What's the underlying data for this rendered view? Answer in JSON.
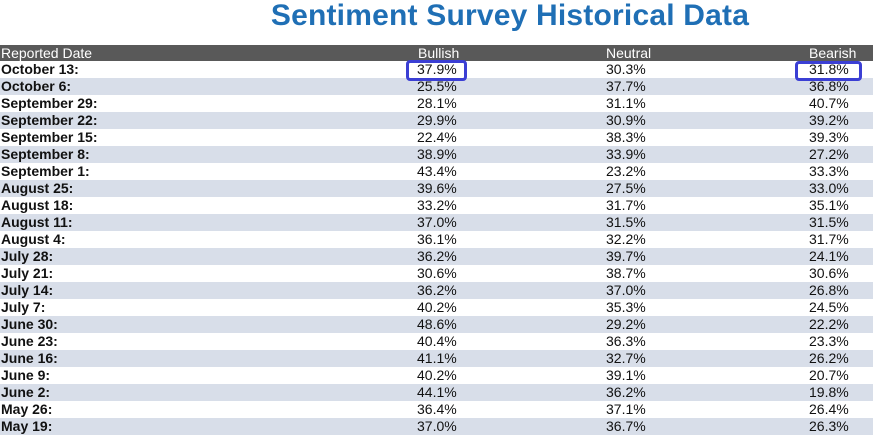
{
  "title": "Sentiment Survey Historical Data",
  "headers": {
    "date": "Reported Date",
    "bullish": "Bullish",
    "neutral": "Neutral",
    "bearish": "Bearish"
  },
  "rows": [
    {
      "date": "October 13:",
      "bullish": "37.9%",
      "neutral": "30.3%",
      "bearish": "31.8%"
    },
    {
      "date": "October 6:",
      "bullish": "25.5%",
      "neutral": "37.7%",
      "bearish": "36.8%"
    },
    {
      "date": "September 29:",
      "bullish": "28.1%",
      "neutral": "31.1%",
      "bearish": "40.7%"
    },
    {
      "date": "September 22:",
      "bullish": "29.9%",
      "neutral": "30.9%",
      "bearish": "39.2%"
    },
    {
      "date": "September 15:",
      "bullish": "22.4%",
      "neutral": "38.3%",
      "bearish": "39.3%"
    },
    {
      "date": "September 8:",
      "bullish": "38.9%",
      "neutral": "33.9%",
      "bearish": "27.2%"
    },
    {
      "date": "September 1:",
      "bullish": "43.4%",
      "neutral": "23.2%",
      "bearish": "33.3%"
    },
    {
      "date": "August 25:",
      "bullish": "39.6%",
      "neutral": "27.5%",
      "bearish": "33.0%"
    },
    {
      "date": "August 18:",
      "bullish": "33.2%",
      "neutral": "31.7%",
      "bearish": "35.1%"
    },
    {
      "date": "August 11:",
      "bullish": "37.0%",
      "neutral": "31.5%",
      "bearish": "31.5%"
    },
    {
      "date": "August 4:",
      "bullish": "36.1%",
      "neutral": "32.2%",
      "bearish": "31.7%"
    },
    {
      "date": "July 28:",
      "bullish": "36.2%",
      "neutral": "39.7%",
      "bearish": "24.1%"
    },
    {
      "date": "July 21:",
      "bullish": "30.6%",
      "neutral": "38.7%",
      "bearish": "30.6%"
    },
    {
      "date": "July 14:",
      "bullish": "36.2%",
      "neutral": "37.0%",
      "bearish": "26.8%"
    },
    {
      "date": "July 7:",
      "bullish": "40.2%",
      "neutral": "35.3%",
      "bearish": "24.5%"
    },
    {
      "date": "June 30:",
      "bullish": "48.6%",
      "neutral": "29.2%",
      "bearish": "22.2%"
    },
    {
      "date": "June 23:",
      "bullish": "40.4%",
      "neutral": "36.3%",
      "bearish": "23.3%"
    },
    {
      "date": "June 16:",
      "bullish": "41.1%",
      "neutral": "32.7%",
      "bearish": "26.2%"
    },
    {
      "date": "June 9:",
      "bullish": "40.2%",
      "neutral": "39.1%",
      "bearish": "20.7%"
    },
    {
      "date": "June 2:",
      "bullish": "44.1%",
      "neutral": "36.2%",
      "bearish": "19.8%"
    },
    {
      "date": "May 26:",
      "bullish": "36.4%",
      "neutral": "37.1%",
      "bearish": "26.4%"
    },
    {
      "date": "May 19:",
      "bullish": "37.0%",
      "neutral": "36.7%",
      "bearish": "26.3%"
    }
  ],
  "colors": {
    "title": "#1f6fb5",
    "header_bg": "#595959",
    "stripe": "#d8dee9",
    "highlight_border": "#3b3fd4"
  }
}
